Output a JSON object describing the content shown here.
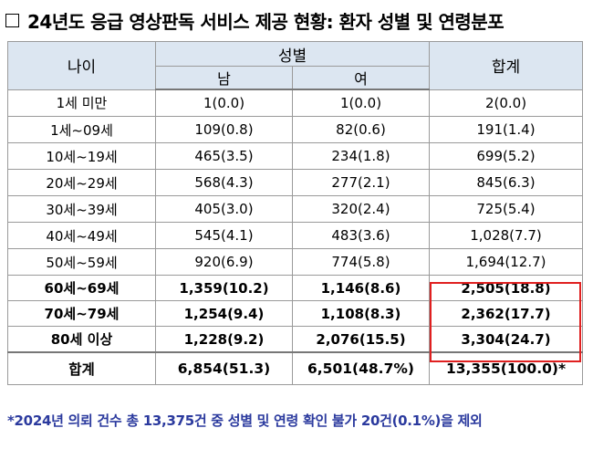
{
  "title": "24년도 응급 영상판독 서비스 제공 현황: 환자 성별 및 연령분포",
  "header": {
    "age": "나이",
    "gender": "성별",
    "male": "남",
    "female": "여",
    "total": "합계"
  },
  "rows": [
    {
      "age": "1세 미만",
      "male": "1(0.0)",
      "female": "1(0.0)",
      "total": "2(0.0)"
    },
    {
      "age": "1세~09세",
      "male": "109(0.8)",
      "female": "82(0.6)",
      "total": "191(1.4)"
    },
    {
      "age": "10세~19세",
      "male": "465(3.5)",
      "female": "234(1.8)",
      "total": "699(5.2)"
    },
    {
      "age": "20세~29세",
      "male": "568(4.3)",
      "female": "277(2.1)",
      "total": "845(6.3)"
    },
    {
      "age": "30세~39세",
      "male": "405(3.0)",
      "female": "320(2.4)",
      "total": "725(5.4)"
    },
    {
      "age": "40세~49세",
      "male": "545(4.1)",
      "female": "483(3.6)",
      "total": "1,028(7.7)"
    },
    {
      "age": "50세~59세",
      "male": "920(6.9)",
      "female": "774(5.8)",
      "total": "1,694(12.7)"
    },
    {
      "age": "60세~69세",
      "male": "1,359(10.2)",
      "female": "1,146(8.6)",
      "total": "2,505(18.8)"
    },
    {
      "age": "70세~79세",
      "male": "1,254(9.4)",
      "female": "1,108(8.3)",
      "total": "2,362(17.7)"
    },
    {
      "age": "80세 이상",
      "male": "1,228(9.2)",
      "female": "2,076(15.5)",
      "total": "3,304(24.7)"
    }
  ],
  "total_row": {
    "age": "합계",
    "male": "6,854(51.3)",
    "female": "6,501(48.7%)",
    "total": "13,355(100.0)*"
  },
  "footnote": "*2024년 의뢰 건수 총 13,375건 중 성별 및 연령 확인 불가 20건(0.1%)을 제외",
  "colors": {
    "header_bg": "#dce6f1",
    "highlight": "#e02020",
    "footnote": "#2b3a9e"
  }
}
